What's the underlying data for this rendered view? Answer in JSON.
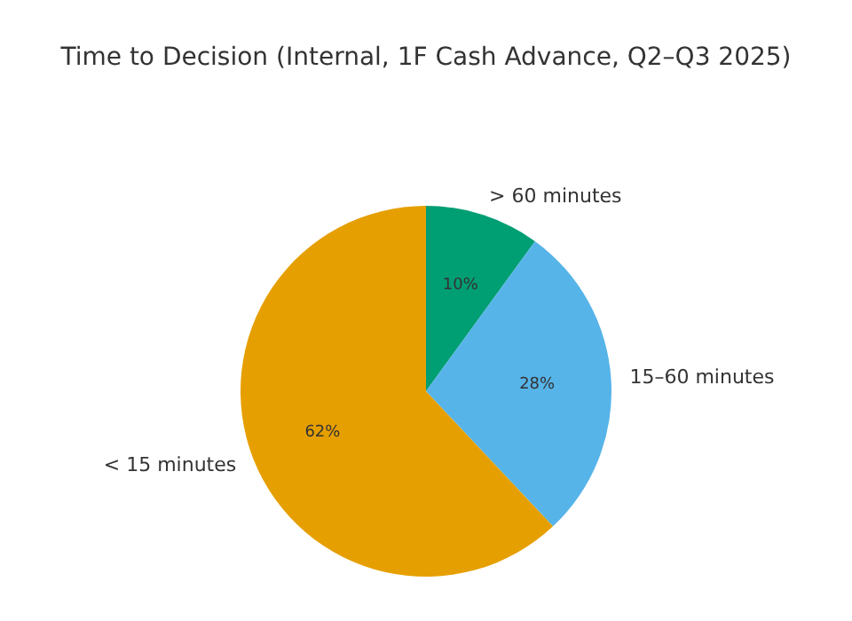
{
  "chart_data": {
    "type": "pie",
    "title": "Time to Decision (Internal, 1F Cash Advance, Q2–Q3 2025)",
    "categories": [
      "> 60 minutes",
      "15–60 minutes",
      "< 15 minutes"
    ],
    "values": [
      10,
      28,
      62
    ],
    "colors": [
      "#009e73",
      "#56b4e9",
      "#e69f00"
    ],
    "value_labels": [
      "10%",
      "28%",
      "62%"
    ],
    "legend": false
  }
}
